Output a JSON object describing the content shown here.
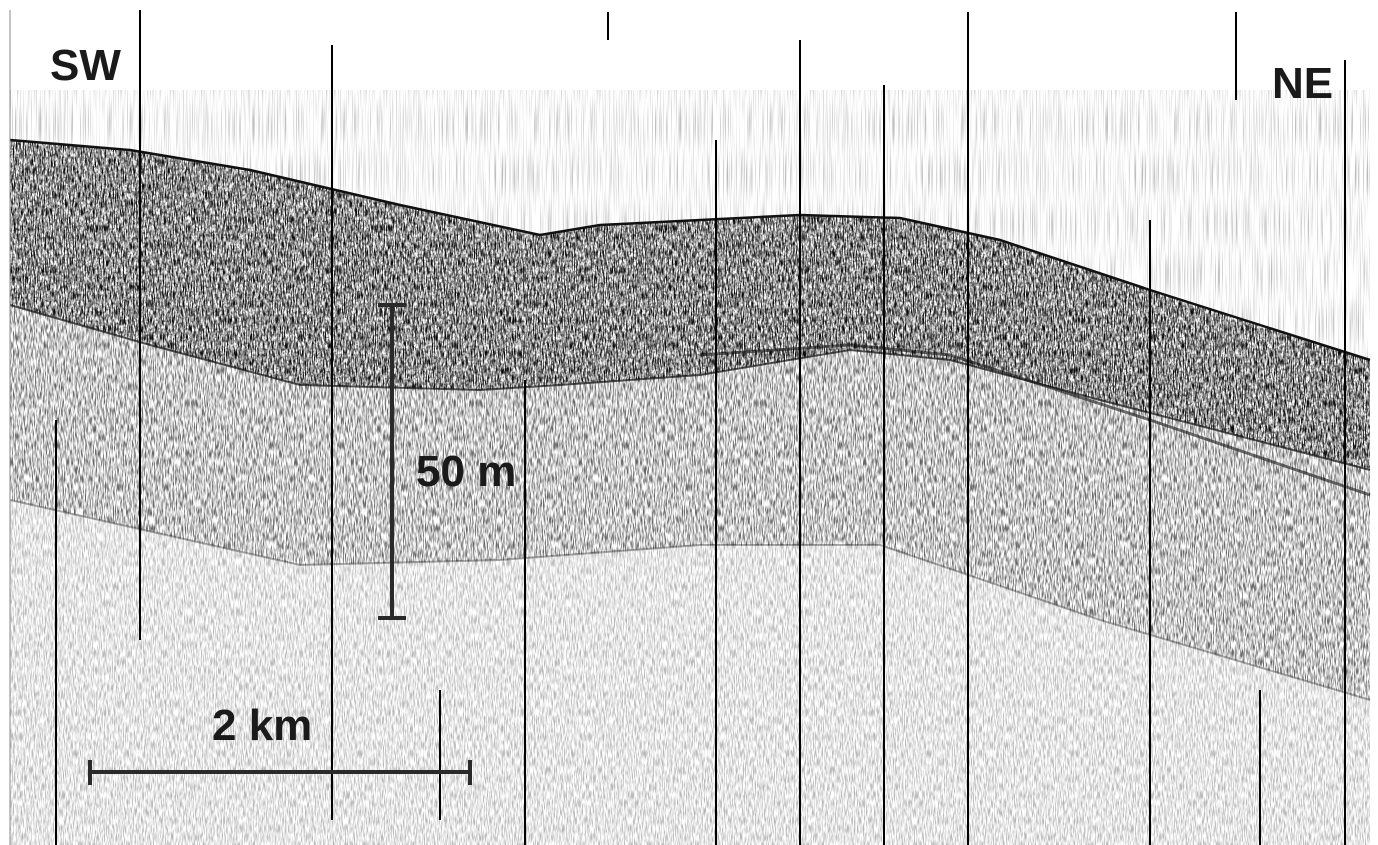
{
  "orientation": {
    "left": "SW",
    "right": "NE"
  },
  "scale_bars": {
    "vertical": "50 m",
    "horizontal": "2 km"
  }
}
